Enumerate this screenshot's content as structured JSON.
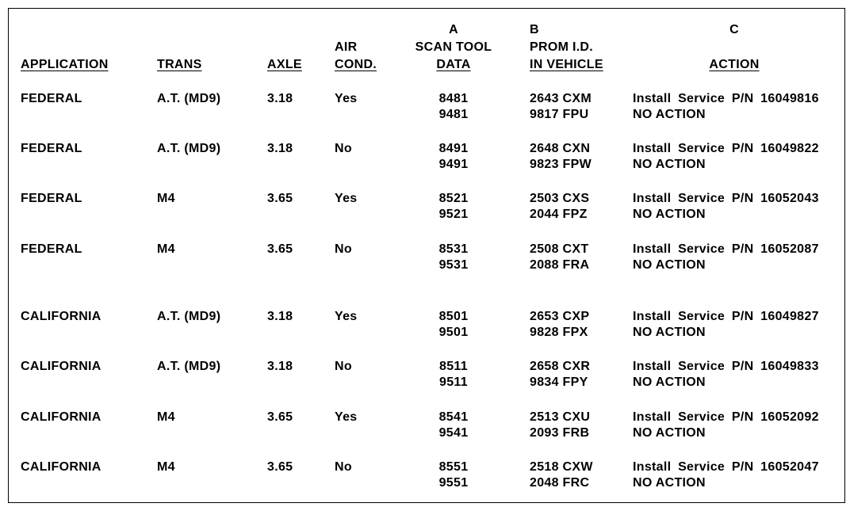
{
  "header": [
    {
      "lines": [
        "APPLICATION"
      ]
    },
    {
      "lines": [
        "TRANS"
      ]
    },
    {
      "lines": [
        "AXLE"
      ]
    },
    {
      "lines": [
        "AIR",
        "COND."
      ]
    },
    {
      "lines": [
        "A",
        "SCAN TOOL",
        "DATA"
      ]
    },
    {
      "lines": [
        "B",
        "PROM I.D.",
        "IN VEHICLE"
      ]
    },
    {
      "lines": [
        "C",
        "ACTION"
      ]
    }
  ],
  "rows": [
    {
      "application": "FEDERAL",
      "trans": "A.T. (MD9)",
      "axle": "3.18",
      "air_cond": "Yes",
      "scan_tool_data": [
        "8481",
        "9481"
      ],
      "prom_id": [
        "2643 CXM",
        "9817 FPU"
      ],
      "action": [
        "Install Service P/N 16049816",
        "NO ACTION"
      ]
    },
    {
      "application": "FEDERAL",
      "trans": "A.T. (MD9)",
      "axle": "3.18",
      "air_cond": "No",
      "scan_tool_data": [
        "8491",
        "9491"
      ],
      "prom_id": [
        "2648 CXN",
        "9823 FPW"
      ],
      "action": [
        "Install Service P/N 16049822",
        "NO ACTION"
      ]
    },
    {
      "application": "FEDERAL",
      "trans": "M4",
      "axle": "3.65",
      "air_cond": "Yes",
      "scan_tool_data": [
        "8521",
        "9521"
      ],
      "prom_id": [
        "2503 CXS",
        "2044 FPZ"
      ],
      "action": [
        "Install Service P/N 16052043",
        "NO ACTION"
      ]
    },
    {
      "application": "FEDERAL",
      "trans": "M4",
      "axle": "3.65",
      "air_cond": "No",
      "scan_tool_data": [
        "8531",
        "9531"
      ],
      "prom_id": [
        "2508 CXT",
        "2088 FRA"
      ],
      "action": [
        "Install Service P/N 16052087",
        "NO ACTION"
      ]
    },
    {
      "application": "CALIFORNIA",
      "trans": "A.T. (MD9)",
      "axle": "3.18",
      "air_cond": "Yes",
      "scan_tool_data": [
        "8501",
        "9501"
      ],
      "prom_id": [
        "2653 CXP",
        "9828 FPX"
      ],
      "action": [
        "Install Service P/N 16049827",
        "NO ACTION"
      ]
    },
    {
      "application": "CALIFORNIA",
      "trans": "A.T. (MD9)",
      "axle": "3.18",
      "air_cond": "No",
      "scan_tool_data": [
        "8511",
        "9511"
      ],
      "prom_id": [
        "2658 CXR",
        "9834 FPY"
      ],
      "action": [
        "Install Service P/N 16049833",
        "NO ACTION"
      ]
    },
    {
      "application": "CALIFORNIA",
      "trans": "M4",
      "axle": "3.65",
      "air_cond": "Yes",
      "scan_tool_data": [
        "8541",
        "9541"
      ],
      "prom_id": [
        "2513 CXU",
        "2093 FRB"
      ],
      "action": [
        "Install Service P/N 16052092",
        "NO ACTION"
      ]
    },
    {
      "application": "CALIFORNIA",
      "trans": "M4",
      "axle": "3.65",
      "air_cond": "No",
      "scan_tool_data": [
        "8551",
        "9551"
      ],
      "prom_id": [
        "2518 CXW",
        "2048 FRC"
      ],
      "action": [
        "Install Service P/N 16052047",
        "NO ACTION"
      ]
    }
  ]
}
